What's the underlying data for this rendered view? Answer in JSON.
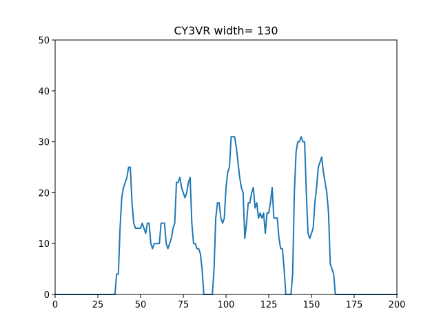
{
  "chart_data": {
    "type": "line",
    "title": "CY3VR width= 130",
    "xlabel": "",
    "ylabel": "",
    "xlim": [
      0,
      200
    ],
    "ylim": [
      0,
      50
    ],
    "xticks": [
      0,
      25,
      50,
      75,
      100,
      125,
      150,
      175,
      200
    ],
    "yticks": [
      0,
      10,
      20,
      30,
      40,
      50
    ],
    "grid": false,
    "series": [
      {
        "color": "#1f77b4",
        "x": [
          0,
          35,
          36,
          37,
          38,
          39,
          40,
          41,
          42,
          43,
          44,
          45,
          46,
          47,
          48,
          49,
          50,
          51,
          52,
          53,
          54,
          55,
          56,
          57,
          58,
          59,
          60,
          61,
          62,
          63,
          64,
          65,
          66,
          67,
          68,
          69,
          70,
          71,
          72,
          73,
          74,
          75,
          76,
          77,
          78,
          79,
          80,
          81,
          82,
          83,
          84,
          85,
          86,
          87,
          88,
          89,
          90,
          91,
          92,
          93,
          94,
          95,
          96,
          97,
          98,
          99,
          100,
          101,
          102,
          103,
          104,
          105,
          106,
          107,
          108,
          109,
          110,
          111,
          112,
          113,
          114,
          115,
          116,
          117,
          118,
          119,
          120,
          121,
          122,
          123,
          124,
          125,
          126,
          127,
          128,
          129,
          130,
          131,
          132,
          133,
          134,
          135,
          136,
          137,
          138,
          139,
          140,
          141,
          142,
          143,
          144,
          145,
          146,
          147,
          148,
          149,
          150,
          151,
          152,
          153,
          154,
          155,
          156,
          157,
          158,
          159,
          160,
          161,
          162,
          163,
          164,
          165,
          166,
          200
        ],
        "y": [
          0,
          0,
          4,
          4,
          13,
          19,
          21,
          22,
          23,
          25,
          25,
          18,
          14,
          13,
          13,
          13,
          13,
          14,
          13,
          12,
          14,
          14,
          10,
          9,
          10,
          10,
          10,
          10,
          14,
          14,
          14,
          10,
          9,
          10,
          11,
          13,
          14,
          22,
          22,
          23,
          21,
          20,
          19,
          20,
          22,
          23,
          14,
          10,
          10,
          9,
          9,
          8,
          5,
          0,
          0,
          0,
          0,
          0,
          0,
          5,
          15,
          18,
          18,
          15,
          14,
          15,
          21,
          24,
          25,
          31,
          31,
          31,
          29,
          26,
          23,
          21,
          20,
          11,
          14,
          18,
          18,
          20,
          21,
          17,
          18,
          15,
          16,
          15,
          16,
          12,
          16,
          16,
          18,
          21,
          15,
          15,
          15,
          11,
          9,
          9,
          5,
          0,
          0,
          0,
          0,
          4,
          20,
          28,
          30,
          30,
          31,
          30,
          30,
          20,
          12,
          11,
          12,
          13,
          18,
          21,
          25,
          26,
          27,
          24,
          22,
          20,
          16,
          6,
          5,
          4,
          0,
          0,
          0,
          0
        ]
      }
    ]
  }
}
